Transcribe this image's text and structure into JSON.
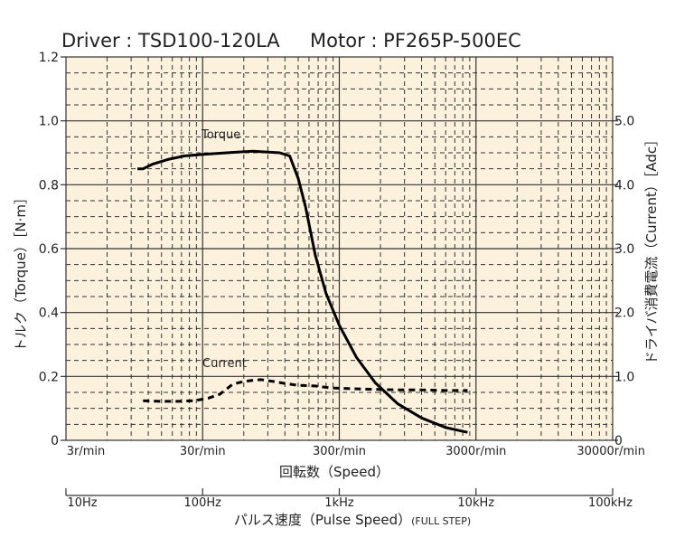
{
  "chart_data": {
    "type": "line",
    "title": "Driver : TSD100-120LA     Motor : PF265P-500EC",
    "xlabel": "回転数（Speed）",
    "x2label": "パルス速度（Pulse Speed）",
    "x2label_note": "(FULL STEP)",
    "ylabel": "トルク（Torque）［N·m］",
    "y2label": "ドライバ消費電流（Current）［Adc］",
    "x_scale": "log",
    "xlim": [
      3,
      30000
    ],
    "ylim": [
      0,
      1.2
    ],
    "y2lim": [
      0,
      6.0
    ],
    "x_ticks": [
      {
        "value": 3,
        "label": "3r/min"
      },
      {
        "value": 30,
        "label": "30r/min"
      },
      {
        "value": 300,
        "label": "300r/min"
      },
      {
        "value": 3000,
        "label": "3000r/min"
      },
      {
        "value": 30000,
        "label": "30000r/min"
      }
    ],
    "x2_ticks": [
      {
        "value": 10,
        "label": "10Hz"
      },
      {
        "value": 100,
        "label": "100Hz"
      },
      {
        "value": 1000,
        "label": "1kHz"
      },
      {
        "value": 10000,
        "label": "10kHz"
      },
      {
        "value": 100000,
        "label": "100kHz"
      }
    ],
    "y_ticks": [
      "0",
      "0.2",
      "0.4",
      "0.6",
      "0.8",
      "1.0",
      "1.2"
    ],
    "y2_ticks": [
      "0",
      "1.0",
      "2.0",
      "3.0",
      "4.0",
      "5.0"
    ],
    "grid": true,
    "background_color": "#fcf1dc",
    "series": [
      {
        "name": "Torque",
        "axis": "left",
        "style": "solid",
        "color": "#000000",
        "x": [
          10,
          11,
          13,
          17,
          22,
          30,
          45,
          70,
          110,
          130,
          150,
          170,
          200,
          240,
          300,
          400,
          550,
          800,
          1200,
          1800,
          2600
        ],
        "y": [
          0.85,
          0.85,
          0.865,
          0.88,
          0.89,
          0.895,
          0.9,
          0.905,
          0.9,
          0.89,
          0.82,
          0.73,
          0.58,
          0.46,
          0.36,
          0.26,
          0.18,
          0.115,
          0.07,
          0.04,
          0.025
        ]
      },
      {
        "name": "Current",
        "axis": "right",
        "style": "dashed",
        "color": "#000000",
        "x": [
          11,
          15,
          20,
          26,
          33,
          40,
          50,
          60,
          70,
          80,
          100,
          120,
          150,
          200,
          260,
          350,
          500,
          800,
          1200,
          1800,
          2600
        ],
        "y": [
          0.62,
          0.61,
          0.61,
          0.62,
          0.66,
          0.72,
          0.88,
          0.92,
          0.94,
          0.95,
          0.92,
          0.89,
          0.86,
          0.85,
          0.82,
          0.81,
          0.8,
          0.79,
          0.79,
          0.78,
          0.78
        ]
      }
    ]
  }
}
